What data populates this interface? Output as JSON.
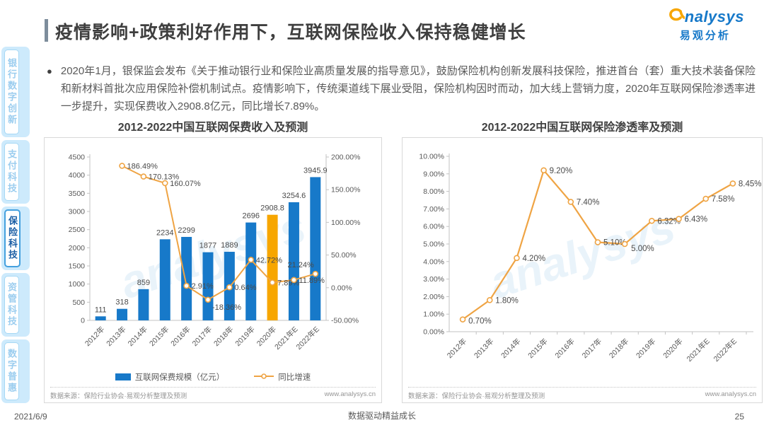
{
  "header": {
    "title": "疫情影响+政策利好作用下，互联网保险收入保持稳健增长",
    "logo": {
      "brand_latin": "nalysys",
      "brand_cn": "易观分析"
    }
  },
  "sidebar": {
    "items": [
      {
        "label": "银行数字创新",
        "active": false
      },
      {
        "label": "支付科技",
        "active": false
      },
      {
        "label": "保险科技",
        "active": true
      },
      {
        "label": "资管科技",
        "active": false
      },
      {
        "label": "数字普惠",
        "active": false
      }
    ]
  },
  "bullet": {
    "marker": "●",
    "text": "2020年1月，银保监会发布《关于推动银行业和保险业高质量发展的指导意见》，鼓励保险机构创新发展科技保险，推进首台（套）重大技术装备保险和新材料首批次应用保险补偿机制试点。疫情影响下，传统渠道线下展业受阻，保险机构因时而动，加大线上营销力度，2020年互联网保险渗透率进一步提升，实现保费收入2908.8亿元，同比增长7.89%。"
  },
  "colors": {
    "bar_blue": "#1779C9",
    "bar_highlight_orange": "#F7A600",
    "line_orange": "#EFA444",
    "brand_blue": "#1779C9"
  },
  "chart_data": [
    {
      "type": "bar",
      "title": "2012-2022中国互联网保费收入及预测",
      "categories": [
        "2012年",
        "2013年",
        "2014年",
        "2015年",
        "2016年",
        "2017年",
        "2018年",
        "2019年",
        "2020年",
        "2021年E",
        "2022年E"
      ],
      "series": [
        {
          "name": "互联网保费规模（亿元）",
          "type": "bar",
          "values": [
            111,
            318,
            859,
            2234,
            2299,
            1877,
            1889,
            2696,
            2908.8,
            3254.6,
            3945.9
          ],
          "color": "#1779C9",
          "highlight_index": 8,
          "highlight_color": "#F7A600"
        },
        {
          "name": "同比增速",
          "type": "line",
          "axis": "right",
          "values": [
            null,
            186.49,
            170.13,
            160.07,
            2.91,
            -18.36,
            0.64,
            42.72,
            7.89,
            11.89,
            21.24
          ],
          "color": "#EFA444",
          "label_suffix": "%"
        }
      ],
      "left_axis": {
        "min": 0,
        "max": 4500,
        "step": 500
      },
      "right_axis": {
        "min": -50,
        "max": 200,
        "step": 50,
        "format": "percent"
      },
      "legend_position": "bottom",
      "grid": false,
      "source": "数据来源：保险行业协会·易观分析整理及预测",
      "site": "www.analysys.cn"
    },
    {
      "type": "line",
      "title": "2012-2022中国互联网保险渗透率及预测",
      "categories": [
        "2012年",
        "2013年",
        "2014年",
        "2015年",
        "2016年",
        "2017年",
        "2018年",
        "2019年",
        "2020年",
        "2021年E",
        "2022年E"
      ],
      "series": [
        {
          "name": "互联网保险渗透率",
          "type": "line",
          "values": [
            0.7,
            1.8,
            4.2,
            9.2,
            7.4,
            5.1,
            5.0,
            6.32,
            6.43,
            7.58,
            8.45
          ],
          "color": "#EFA444",
          "label_suffix": "%"
        }
      ],
      "y_axis": {
        "min": 0,
        "max": 10,
        "step": 1,
        "format": "percent"
      },
      "legend_position": "none",
      "grid": false,
      "source": "数据来源：保险行业协会·易观分析整理及预测",
      "site": "www.analysys.cn"
    }
  ],
  "footer": {
    "date": "2021/6/9",
    "slogan": "数据驱动精益成长",
    "page": "25"
  }
}
